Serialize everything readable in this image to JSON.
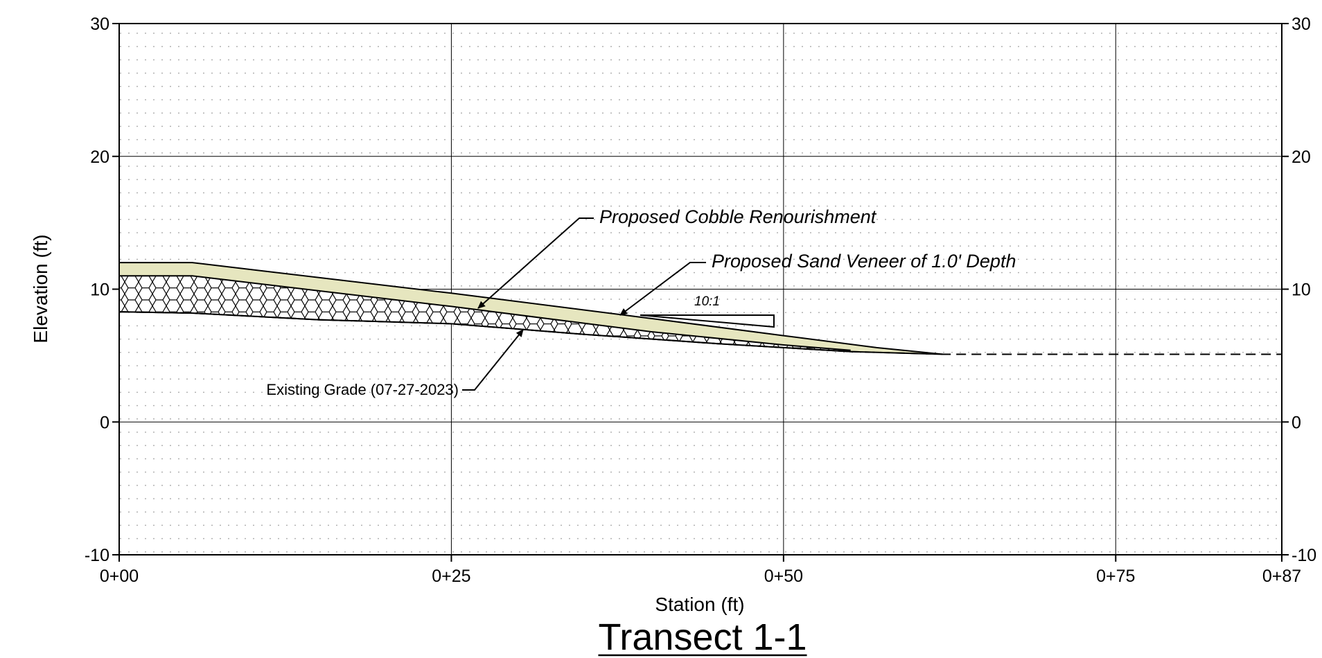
{
  "figure": {
    "title": "Transect 1-1",
    "xlabel": "Station (ft)",
    "ylabel": "Elevation (ft)"
  },
  "axes": {
    "x_ticks": [
      {
        "value": 0,
        "label": "0+00"
      },
      {
        "value": 25,
        "label": "0+25"
      },
      {
        "value": 50,
        "label": "0+50"
      },
      {
        "value": 75,
        "label": "0+75"
      },
      {
        "value": 87.5,
        "label": "0+87"
      }
    ],
    "y_ticks": [
      {
        "value": 30,
        "label": "30"
      },
      {
        "value": 20,
        "label": "20"
      },
      {
        "value": 10,
        "label": "10"
      },
      {
        "value": 0,
        "label": "0"
      },
      {
        "value": -10,
        "label": "-10"
      }
    ],
    "xlim": [
      0,
      87.5
    ],
    "ylim": [
      -10,
      30
    ],
    "grid": true,
    "right_axis_labels": true
  },
  "chart_data": {
    "type": "cross-section",
    "existing_grade": [
      [
        0,
        8.3
      ],
      [
        5.5,
        8.2
      ],
      [
        15,
        7.7
      ],
      [
        25,
        7.4
      ],
      [
        35,
        6.6
      ],
      [
        45,
        5.9
      ],
      [
        55,
        5.3
      ],
      [
        62,
        5.1
      ],
      [
        87.5,
        5.1
      ]
    ],
    "proposed_sand_top": [
      [
        0,
        12.0
      ],
      [
        5.5,
        12.0
      ],
      [
        25,
        9.7
      ],
      [
        40,
        7.8
      ],
      [
        50,
        6.5
      ],
      [
        57,
        5.6
      ],
      [
        62,
        5.1
      ]
    ],
    "proposed_cobble_top": [
      [
        0,
        11.0
      ],
      [
        5.5,
        11.0
      ],
      [
        25,
        8.7
      ],
      [
        40,
        6.8
      ],
      [
        50,
        5.8
      ],
      [
        55,
        5.4
      ]
    ],
    "slope_indicator": {
      "label": "10:1"
    }
  },
  "annotations": {
    "cobble": "Proposed Cobble Renourishment",
    "sand": "Proposed Sand Veneer of 1.0' Depth",
    "existing": "Existing Grade (07-27-2023)"
  },
  "colors": {
    "sand_fill": "#e6e6bf",
    "cobble_fill": "#ffffff",
    "line": "#000000",
    "grid": "#000000",
    "dots": "#9a9a9a"
  }
}
